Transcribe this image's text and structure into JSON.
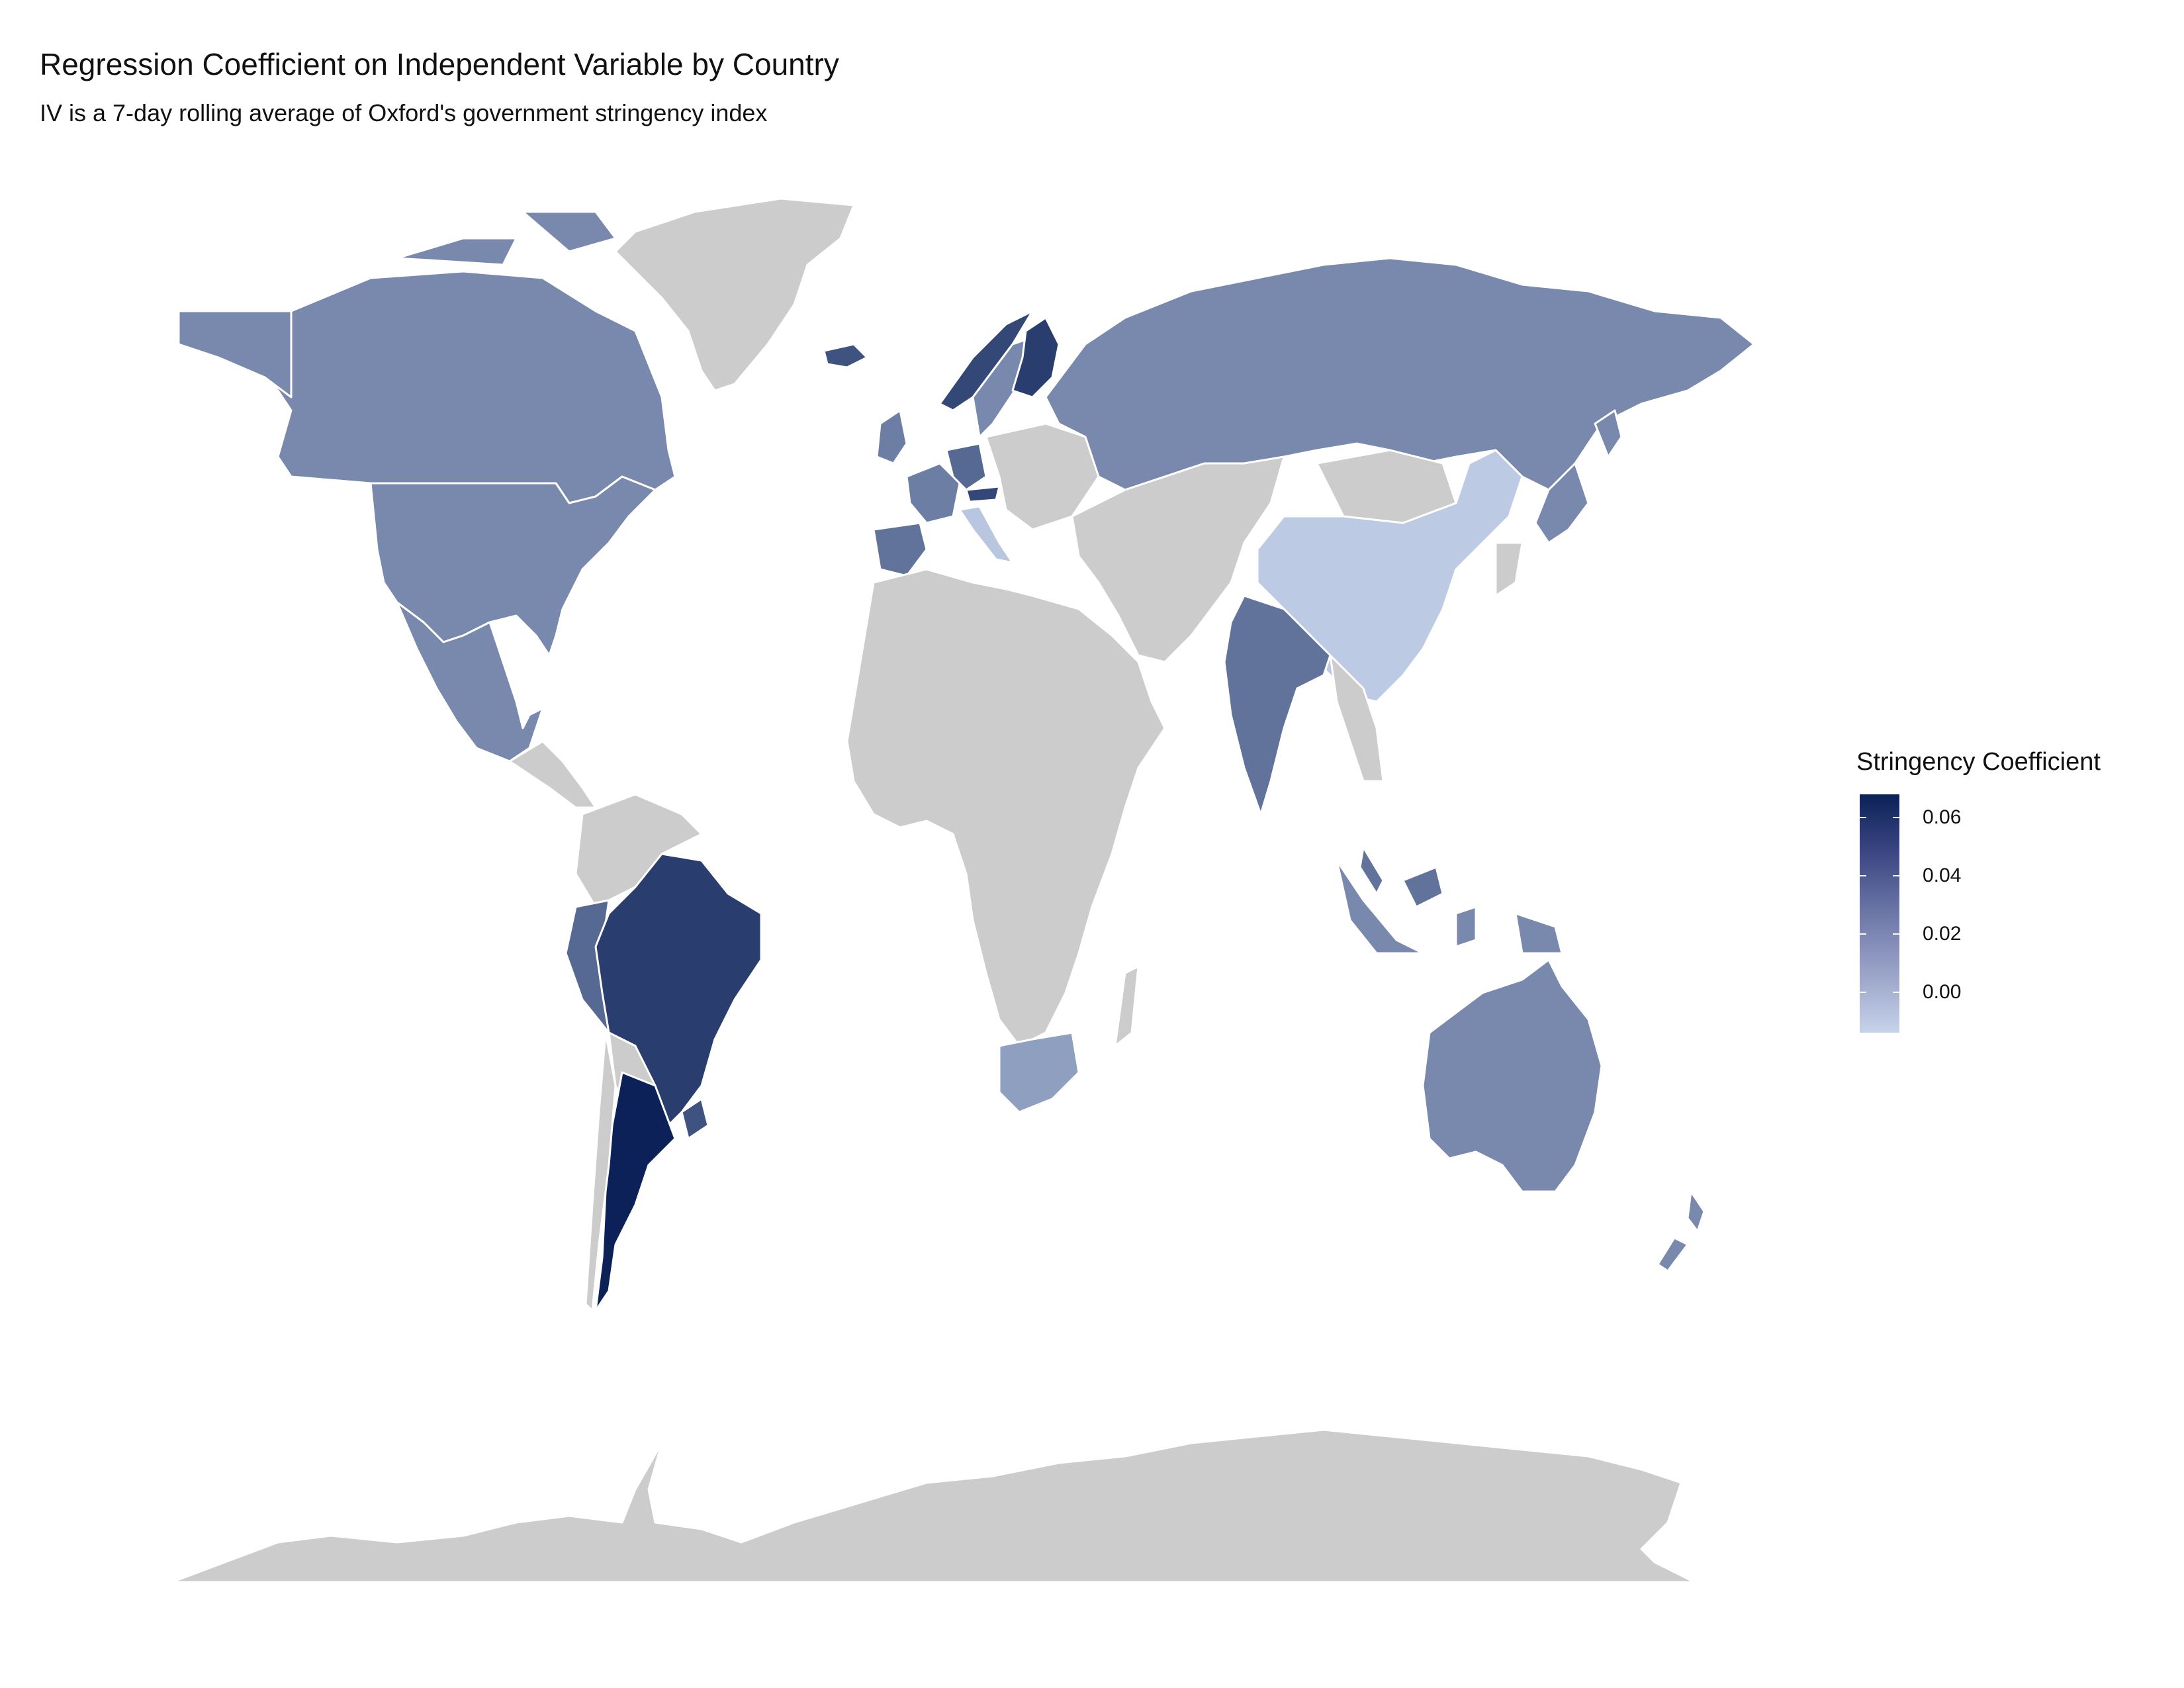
{
  "title": "Regression Coefficient on Independent Variable by Country",
  "subtitle": "IV is a 7-day rolling average of Oxford's government stringency index",
  "legend": {
    "title": "Stringency Coefficient",
    "ticks": [
      {
        "value": 0.06,
        "label": "0.06"
      },
      {
        "value": 0.04,
        "label": "0.04"
      },
      {
        "value": 0.02,
        "label": "0.02"
      },
      {
        "value": 0.0,
        "label": "0.00"
      }
    ],
    "range": [
      -0.014,
      0.068
    ],
    "colors": {
      "high": "#0b2157",
      "low": "#c6d3ea",
      "no_data": "#cccccc",
      "border": "#ffffff"
    }
  },
  "countries": [
    {
      "name": "Greenland",
      "value": null
    },
    {
      "name": "Canada",
      "value": 0.02
    },
    {
      "name": "United States",
      "value": 0.02
    },
    {
      "name": "Mexico",
      "value": 0.02
    },
    {
      "name": "Brazil",
      "value": 0.055
    },
    {
      "name": "Argentina",
      "value": 0.068
    },
    {
      "name": "Peru",
      "value": 0.035
    },
    {
      "name": "Uruguay",
      "value": 0.045
    },
    {
      "name": "Russia",
      "value": 0.02
    },
    {
      "name": "China",
      "value": -0.01
    },
    {
      "name": "India",
      "value": 0.03
    },
    {
      "name": "Finland",
      "value": 0.055
    },
    {
      "name": "Norway",
      "value": 0.05
    },
    {
      "name": "Sweden",
      "value": 0.02
    },
    {
      "name": "Iceland",
      "value": 0.045
    },
    {
      "name": "United Kingdom",
      "value": 0.025
    },
    {
      "name": "Spain",
      "value": 0.03
    },
    {
      "name": "France",
      "value": 0.025
    },
    {
      "name": "Germany",
      "value": 0.035
    },
    {
      "name": "Austria",
      "value": 0.05
    },
    {
      "name": "Italy",
      "value": -0.008
    },
    {
      "name": "Malaysia",
      "value": 0.03
    },
    {
      "name": "Japan",
      "value": 0.02
    },
    {
      "name": "Australia",
      "value": 0.02
    },
    {
      "name": "New Zealand",
      "value": 0.02
    },
    {
      "name": "South Africa",
      "value": 0.01
    },
    {
      "name": "Indonesia",
      "value": 0.02
    },
    {
      "name": "Antarctica",
      "value": null
    }
  ]
}
